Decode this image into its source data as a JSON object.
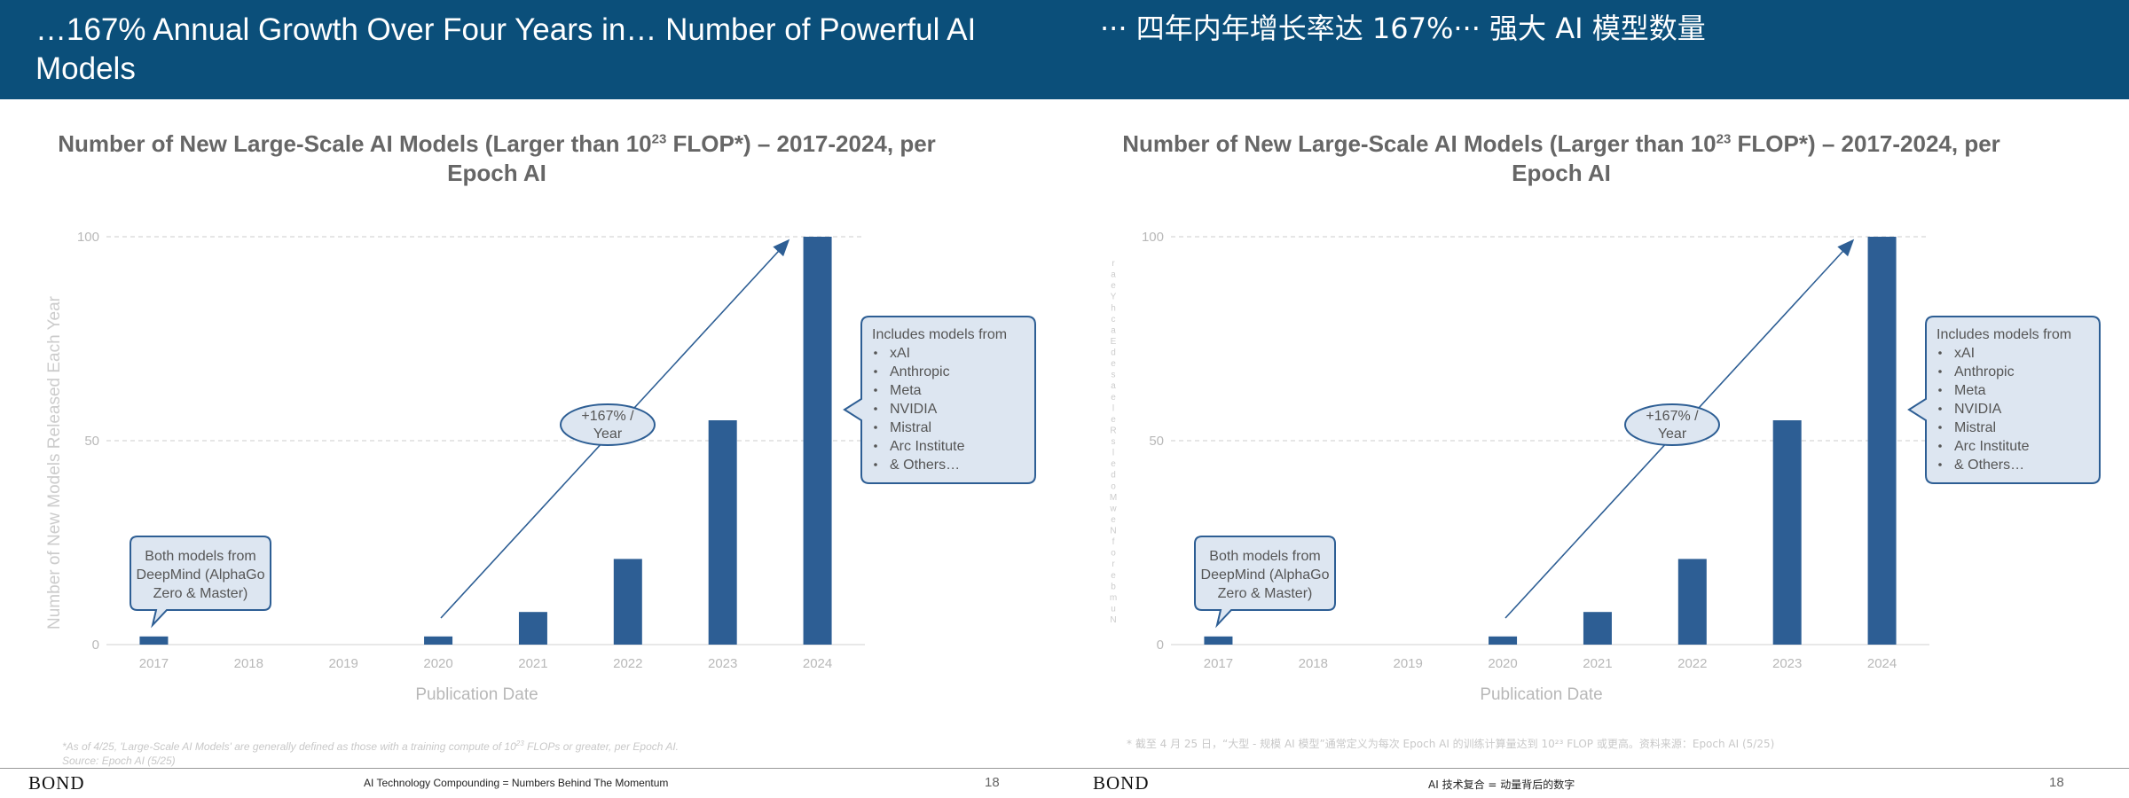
{
  "header": {
    "title_left": "…167% Annual Growth Over Four Years in… Number of Powerful AI Models",
    "title_right": "··· 四年内年增长率达 167%··· 强大 AI 模型数量"
  },
  "panels": [
    {
      "chart_title": "Number of New Large-Scale AI Models (Larger than 10²³ FLOP*) – 2017-2024, per Epoch AI",
      "growth_label": "+167% / Year",
      "callout_left": [
        "Both models from",
        "DeepMind (AlphaGo",
        "Zero & Master)"
      ],
      "callout_right_title": "Includes models from",
      "callout_right_items": [
        "xAI",
        "Anthropic",
        "Meta",
        "NVIDIA",
        "Mistral",
        "Arc Institute",
        "& Others…"
      ],
      "footnote_lines": [
        "*As of 4/25, 'Large-Scale AI Models' are generally defined as those with a training compute of 10²³ FLOPs or greater, per Epoch AI.",
        "Source: Epoch AI (5/25)"
      ],
      "footer_brand": "BOND",
      "footer_text": "AI Technology Compounding = Numbers Behind The Momentum",
      "page_number": "18"
    },
    {
      "chart_title": "Number of New Large-Scale AI Models (Larger than 10²³ FLOP*) – 2017-2024, per Epoch AI",
      "growth_label": "+167% / Year",
      "callout_left": [
        "Both models from",
        "DeepMind (AlphaGo",
        "Zero & Master)"
      ],
      "callout_right_title": "Includes models from",
      "callout_right_items": [
        "xAI",
        "Anthropic",
        "Meta",
        "NVIDIA",
        "Mistral",
        "Arc Institute",
        "& Others…"
      ],
      "footnote_lines": [
        "* 截至 4 月 25 日，“大型 - 规模 AI 模型”通常定义为每次 Epoch AI 的训练计算量达到 10²³ FLOP 或更高。资料来源：Epoch AI (5/25)"
      ],
      "footer_brand": "BOND",
      "footer_text": "AI 技术复合 = 动量背后的数字",
      "page_number": "18"
    }
  ],
  "chart_data": [
    {
      "type": "bar",
      "categories": [
        "2017",
        "2018",
        "2019",
        "2020",
        "2021",
        "2022",
        "2023",
        "2024"
      ],
      "values": [
        2,
        0,
        0,
        2,
        8,
        21,
        55,
        100
      ],
      "xlabel": "Publication Date",
      "ylabel": "Number of New Models Released Each Year",
      "yticks": [
        0,
        50,
        100
      ],
      "ylim": [
        0,
        100
      ],
      "grid": true,
      "bar_color": "#2d5e94"
    },
    {
      "type": "bar",
      "categories": [
        "2017",
        "2018",
        "2019",
        "2020",
        "2021",
        "2022",
        "2023",
        "2024"
      ],
      "values": [
        2,
        0,
        0,
        2,
        8,
        21,
        55,
        100
      ],
      "xlabel": "Publication Date",
      "ylabel": "Number of New Models Released Each Year",
      "yticks": [
        0,
        50,
        100
      ],
      "ylim": [
        0,
        100
      ],
      "grid": true,
      "bar_color": "#2d5e94"
    }
  ]
}
